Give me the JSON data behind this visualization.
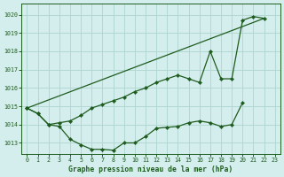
{
  "title": "Graphe pression niveau de la mer (hPa)",
  "bg_color": "#d4eeed",
  "grid_color": "#b2d8d4",
  "line_color": "#1e5c1e",
  "xlim": [
    -0.5,
    23.5
  ],
  "ylim": [
    1012.4,
    1020.6
  ],
  "yticks": [
    1013,
    1014,
    1015,
    1016,
    1017,
    1018,
    1019,
    1020
  ],
  "xticks": [
    0,
    1,
    2,
    3,
    4,
    5,
    6,
    7,
    8,
    9,
    10,
    11,
    12,
    13,
    14,
    15,
    16,
    17,
    18,
    19,
    20,
    21,
    22,
    23
  ],
  "line_straight": {
    "x": [
      0,
      22
    ],
    "y": [
      1014.9,
      1019.8
    ]
  },
  "line_top": {
    "x": [
      0,
      1,
      2,
      3,
      4,
      5,
      6,
      7,
      8,
      9,
      10,
      11,
      12,
      13,
      14,
      15,
      16,
      17,
      18,
      19,
      20,
      21,
      22
    ],
    "y": [
      1014.9,
      1014.6,
      1014.0,
      1014.1,
      1014.2,
      1014.5,
      1014.9,
      1015.1,
      1015.3,
      1015.5,
      1015.8,
      1016.0,
      1016.3,
      1016.5,
      1016.7,
      1016.5,
      1016.3,
      1018.0,
      1016.5,
      1016.5,
      1019.7,
      1019.9,
      1019.8
    ]
  },
  "line_bottom": {
    "x": [
      0,
      1,
      2,
      3,
      4,
      5,
      6,
      7,
      8,
      9,
      10,
      11,
      12,
      13,
      14,
      15,
      16,
      17,
      18,
      19,
      20
    ],
    "y": [
      1014.9,
      1014.6,
      1014.0,
      1013.9,
      1013.2,
      1012.9,
      1012.65,
      1012.65,
      1012.6,
      1013.0,
      1013.0,
      1013.35,
      1013.8,
      1013.85,
      1013.9,
      1014.1,
      1014.2,
      1014.1,
      1013.9,
      1014.0,
      1015.2
    ]
  }
}
